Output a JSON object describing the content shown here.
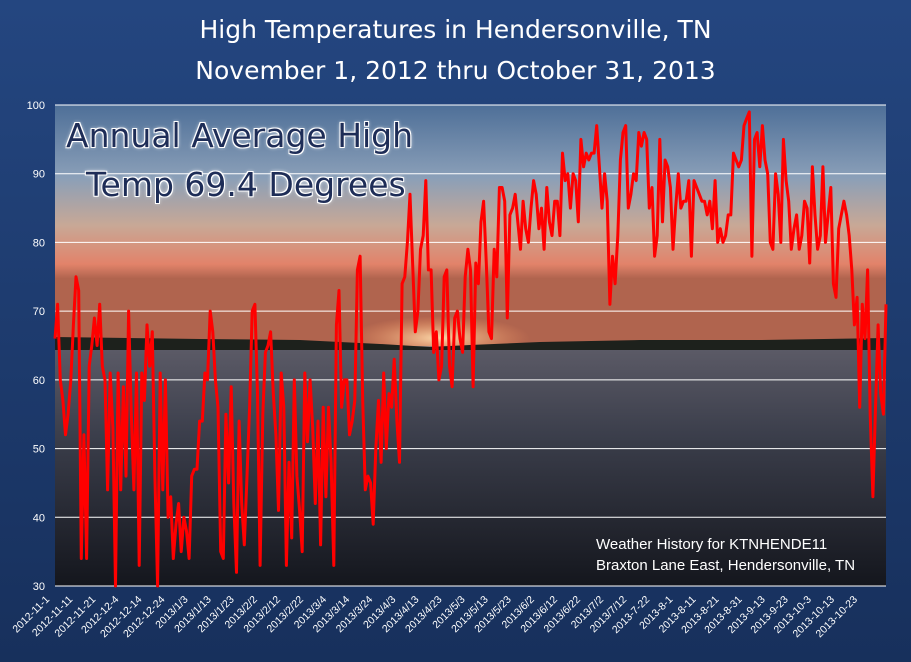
{
  "chart_data": {
    "type": "line",
    "title": "High Temperatures in Hendersonville, TN",
    "subtitle": "November 1, 2012 thru October 31, 2013",
    "xlabel": "",
    "ylabel": "",
    "ylim": [
      30,
      100
    ],
    "yticks": [
      30,
      40,
      50,
      60,
      70,
      80,
      90,
      100
    ],
    "grid": true,
    "series_color": "#ff0000",
    "x_tick_labels": [
      "2012-11-1",
      "2012-11-11",
      "2012-11-21",
      "2012-12-4",
      "2012-12-14",
      "2012-12-24",
      "2013/1/3",
      "2013/1/13",
      "2013/1/23",
      "2013/2/2",
      "2013/2/12",
      "2013/2/22",
      "2013/3/4",
      "2013/3/14",
      "2013/3/24",
      "2013/4/3",
      "2013/4/13",
      "2013/4/23",
      "2013/5/3",
      "2013/5/13",
      "2013/5/23",
      "2013/6/2",
      "2013/6/12",
      "2013/6/22",
      "2013/7/2",
      "2013/7/12",
      "2013-7-22",
      "2013-8-1",
      "2013-8-11",
      "2013-8-21",
      "2013-8-31",
      "2013-9-13",
      "2013-9-23",
      "2013-10-3",
      "2013-10-13",
      "2013-10-23"
    ],
    "series": [
      {
        "values": [
          66,
          71,
          60,
          57,
          52,
          55,
          60,
          68,
          75,
          73,
          34,
          52,
          34,
          62,
          65,
          69,
          65,
          71,
          62,
          60,
          44,
          61,
          53,
          30,
          61,
          44,
          59,
          46,
          70,
          55,
          44,
          61,
          33,
          61,
          57,
          68,
          62,
          67,
          46,
          30,
          61,
          44,
          60,
          40,
          43,
          34,
          39,
          42,
          35,
          40,
          38,
          34,
          46,
          47,
          47,
          54,
          54,
          61,
          60,
          70,
          67,
          60,
          56,
          35,
          34,
          55,
          45,
          59,
          42,
          32,
          54,
          42,
          36,
          46,
          56,
          70,
          71,
          58,
          33,
          55,
          64,
          65,
          67,
          58,
          52,
          41,
          61,
          56,
          33,
          48,
          37,
          60,
          46,
          41,
          35,
          61,
          51,
          60,
          53,
          42,
          54,
          36,
          56,
          43,
          56,
          48,
          33,
          68,
          73,
          56,
          60,
          60,
          52,
          54,
          57,
          76,
          78,
          57,
          44,
          46,
          45,
          39,
          50,
          57,
          48,
          61,
          50,
          58,
          56,
          63,
          54,
          48,
          74,
          75,
          80,
          87,
          77,
          67,
          70,
          79,
          81,
          89,
          76,
          76,
          64,
          67,
          60,
          62,
          75,
          76,
          62,
          59,
          69,
          70,
          66,
          64,
          75,
          79,
          76,
          59,
          77,
          74,
          83,
          86,
          77,
          67,
          66,
          79,
          75,
          88,
          88,
          86,
          69,
          84,
          85,
          87,
          83,
          79,
          86,
          82,
          80,
          85,
          89,
          87,
          82,
          85,
          79,
          88,
          83,
          81,
          86,
          86,
          81,
          93,
          89,
          90,
          85,
          90,
          89,
          83,
          95,
          91,
          93,
          92,
          93,
          93,
          97,
          91,
          85,
          90,
          86,
          71,
          78,
          74,
          81,
          92,
          96,
          97,
          85,
          87,
          90,
          89,
          96,
          94,
          96,
          95,
          85,
          88,
          78,
          81,
          95,
          83,
          92,
          91,
          88,
          79,
          85,
          90,
          85,
          86,
          86,
          89,
          78,
          89,
          88,
          87,
          86,
          86,
          84,
          86,
          82,
          89,
          80,
          82,
          80,
          81,
          84,
          84,
          93,
          92,
          91,
          92,
          97,
          98,
          99,
          78,
          95,
          96,
          91,
          97,
          92,
          90,
          80,
          79,
          90,
          87,
          80,
          95,
          89,
          86,
          79,
          82,
          84,
          79,
          81,
          86,
          85,
          77,
          91,
          84,
          79,
          81,
          91,
          80,
          84,
          88,
          74,
          72,
          82,
          84,
          86,
          84,
          81,
          76,
          68,
          72,
          56,
          71,
          66,
          76,
          55,
          43,
          56,
          68,
          58,
          55,
          71
        ]
      }
    ],
    "annotation": {
      "line1": "Annual Average High",
      "line2": "Temp 69.4 Degrees"
    },
    "source": {
      "line1": "Weather History for KTNHENDE11",
      "line2": "Braxton Lane East, Hendersonville, TN"
    }
  }
}
